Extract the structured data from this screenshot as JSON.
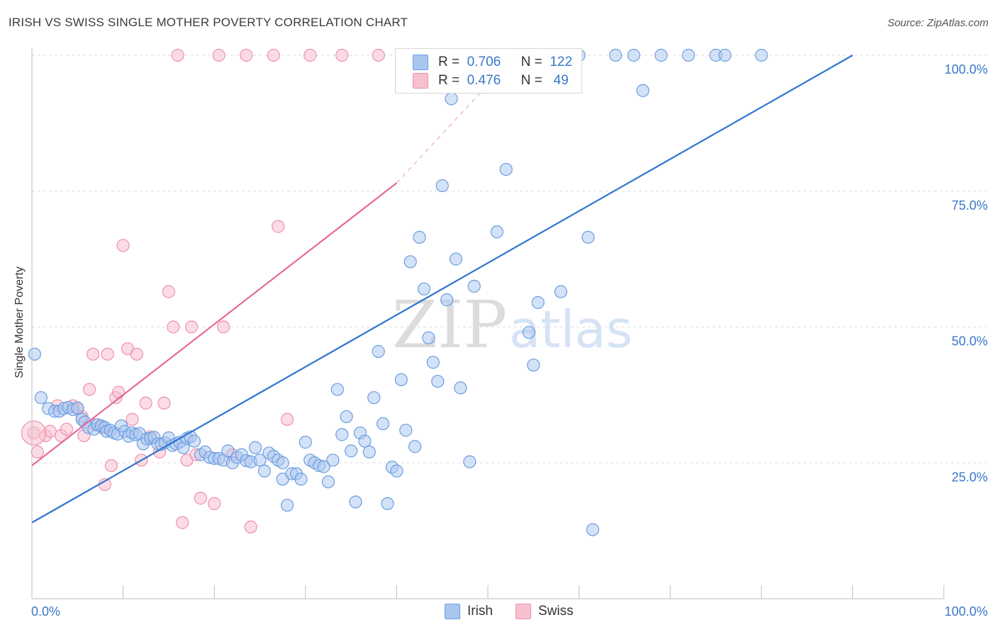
{
  "header": {
    "title": "IRISH VS SWISS SINGLE MOTHER POVERTY CORRELATION CHART",
    "source": "Source: ZipAtlas.com"
  },
  "watermark": {
    "zip": "ZIP",
    "atlas": "atlas"
  },
  "legend": {
    "irish": {
      "r_key": "R =",
      "r_value": "0.706",
      "n_key": "N =",
      "n_value": "122"
    },
    "swiss": {
      "r_key": "R =",
      "r_value": "0.476",
      "n_key": "N =",
      "n_value": "49"
    }
  },
  "bottom_legend": {
    "irish_label": "Irish",
    "swiss_label": "Swiss"
  },
  "colors": {
    "irish_fill": "#a9c6ef",
    "irish_stroke": "#6b9ee0",
    "irish_line": "#2f74d0",
    "swiss_fill": "#f7c0cf",
    "swiss_stroke": "#ee90ab",
    "swiss_line": "#e5699a",
    "tick_label": "#3b78c9"
  },
  "chart_data": {
    "type": "scatter",
    "title": "IRISH VS SWISS SINGLE MOTHER POVERTY CORRELATION CHART",
    "xlabel": "",
    "ylabel": "Single Mother Poverty",
    "xlim": [
      0,
      100
    ],
    "ylim": [
      0,
      100
    ],
    "x_tick_labels": [
      "0.0%",
      "100.0%"
    ],
    "y_ticks": [
      25,
      50,
      75,
      100
    ],
    "y_tick_labels": [
      "25.0%",
      "50.0%",
      "75.0%",
      "100.0%"
    ],
    "grid": "horizontal dashed",
    "legend_position": "top-center",
    "series": [
      {
        "name": "Irish",
        "r": 0.706,
        "n": 122,
        "trend": {
          "x": [
            0,
            90
          ],
          "y": [
            14,
            100
          ]
        },
        "points": [
          [
            0.3,
            45
          ],
          [
            1,
            37
          ],
          [
            1.8,
            35
          ],
          [
            2.5,
            34.5
          ],
          [
            3,
            34.5
          ],
          [
            3.5,
            35
          ],
          [
            4,
            35.2
          ],
          [
            4.5,
            34.8
          ],
          [
            5,
            35.1
          ],
          [
            5.5,
            33
          ],
          [
            5.8,
            32.5
          ],
          [
            6.2,
            31.5
          ],
          [
            6.8,
            31.2
          ],
          [
            7.2,
            32
          ],
          [
            7.6,
            31.8
          ],
          [
            8,
            31.5
          ],
          [
            8.2,
            30.8
          ],
          [
            8.6,
            31
          ],
          [
            9,
            30.5
          ],
          [
            9.4,
            30.3
          ],
          [
            9.8,
            31.8
          ],
          [
            10.2,
            30.8
          ],
          [
            10.6,
            29.9
          ],
          [
            11,
            30.5
          ],
          [
            11.4,
            30.2
          ],
          [
            11.8,
            30.4
          ],
          [
            12.2,
            28.5
          ],
          [
            12.6,
            29.4
          ],
          [
            13,
            29.5
          ],
          [
            13.4,
            29.7
          ],
          [
            13.8,
            28.5
          ],
          [
            14.2,
            28.4
          ],
          [
            14.6,
            28.7
          ],
          [
            15,
            29.6
          ],
          [
            15.4,
            28.2
          ],
          [
            15.8,
            28.5
          ],
          [
            16.2,
            28.8
          ],
          [
            16.6,
            27.8
          ],
          [
            17,
            29.5
          ],
          [
            17.4,
            29.8
          ],
          [
            17.8,
            29
          ],
          [
            18.5,
            26.5
          ],
          [
            19,
            27
          ],
          [
            19.5,
            26
          ],
          [
            20,
            25.8
          ],
          [
            20.5,
            25.8
          ],
          [
            21,
            25.5
          ],
          [
            21.5,
            27.2
          ],
          [
            22,
            25
          ],
          [
            22.5,
            26
          ],
          [
            23,
            26.5
          ],
          [
            23.5,
            25.4
          ],
          [
            24,
            25.2
          ],
          [
            24.5,
            27.8
          ],
          [
            25,
            25.5
          ],
          [
            25.5,
            23.5
          ],
          [
            26,
            26.8
          ],
          [
            26.5,
            26.2
          ],
          [
            27,
            25.5
          ],
          [
            27.5,
            25
          ],
          [
            27.5,
            22
          ],
          [
            28,
            17.2
          ],
          [
            28.5,
            23
          ],
          [
            29,
            23
          ],
          [
            29.5,
            22
          ],
          [
            30,
            28.8
          ],
          [
            30.5,
            25.5
          ],
          [
            31,
            25
          ],
          [
            31.5,
            24.5
          ],
          [
            32,
            24.3
          ],
          [
            32.5,
            21.5
          ],
          [
            33,
            25.5
          ],
          [
            33.5,
            38.5
          ],
          [
            34,
            30.2
          ],
          [
            34.5,
            33.5
          ],
          [
            35,
            27.2
          ],
          [
            35.5,
            17.8
          ],
          [
            36,
            30.5
          ],
          [
            36.5,
            29
          ],
          [
            37,
            27
          ],
          [
            37.5,
            37
          ],
          [
            38,
            45.5
          ],
          [
            38.5,
            32.2
          ],
          [
            39,
            17.5
          ],
          [
            39.5,
            24.2
          ],
          [
            40,
            23.5
          ],
          [
            40.5,
            40.3
          ],
          [
            41,
            31
          ],
          [
            41.5,
            62
          ],
          [
            42,
            28
          ],
          [
            42.5,
            66.5
          ],
          [
            43,
            57
          ],
          [
            43.5,
            48
          ],
          [
            44,
            43.5
          ],
          [
            44.5,
            40
          ],
          [
            45,
            76
          ],
          [
            45.5,
            55
          ],
          [
            46,
            92
          ],
          [
            46.5,
            62.5
          ],
          [
            47,
            38.8
          ],
          [
            48,
            25.2
          ],
          [
            48.5,
            57.5
          ],
          [
            50,
            100
          ],
          [
            51,
            67.5
          ],
          [
            52,
            79
          ],
          [
            54,
            100
          ],
          [
            54.5,
            49
          ],
          [
            55,
            43
          ],
          [
            55.5,
            54.5
          ],
          [
            57,
            100
          ],
          [
            58,
            56.5
          ],
          [
            59,
            100
          ],
          [
            60,
            100
          ],
          [
            61,
            66.5
          ],
          [
            61.5,
            12.7
          ],
          [
            64,
            100
          ],
          [
            66,
            100
          ],
          [
            67,
            93.5
          ],
          [
            69,
            100
          ],
          [
            72,
            100
          ],
          [
            75,
            100
          ],
          [
            76,
            100
          ],
          [
            80,
            100
          ]
        ]
      },
      {
        "name": "Swiss",
        "r": 0.476,
        "n": 49,
        "trend": {
          "x": [
            0,
            40
          ],
          "y": [
            24.5,
            76.5
          ],
          "dashed_x": [
            40,
            53
          ],
          "dashed_y": [
            76.5,
            100
          ]
        },
        "points": [
          [
            0.2,
            30.5
          ],
          [
            0.6,
            27
          ],
          [
            1.5,
            30
          ],
          [
            2,
            30.8
          ],
          [
            2.8,
            35.5
          ],
          [
            3.2,
            30
          ],
          [
            3.8,
            31.2
          ],
          [
            4.5,
            35.5
          ],
          [
            5,
            35
          ],
          [
            5.5,
            33.5
          ],
          [
            5.7,
            30
          ],
          [
            6.3,
            38.5
          ],
          [
            6.7,
            45
          ],
          [
            7,
            32
          ],
          [
            7.7,
            31.5
          ],
          [
            8,
            21
          ],
          [
            8.3,
            45
          ],
          [
            8.7,
            24.5
          ],
          [
            9.2,
            37
          ],
          [
            9.5,
            38
          ],
          [
            10,
            65
          ],
          [
            10.5,
            46
          ],
          [
            11,
            33
          ],
          [
            11.5,
            45
          ],
          [
            12,
            25.5
          ],
          [
            12.5,
            36
          ],
          [
            13,
            29.8
          ],
          [
            14,
            27
          ],
          [
            14.5,
            36
          ],
          [
            15,
            56.5
          ],
          [
            15.5,
            50
          ],
          [
            16,
            100
          ],
          [
            16.5,
            14
          ],
          [
            17,
            25.5
          ],
          [
            17.5,
            50
          ],
          [
            18,
            26.5
          ],
          [
            18.5,
            18.5
          ],
          [
            20,
            17.5
          ],
          [
            20.5,
            100
          ],
          [
            21,
            50
          ],
          [
            22,
            26.5
          ],
          [
            23.5,
            100
          ],
          [
            24,
            13.2
          ],
          [
            26.5,
            100
          ],
          [
            27,
            68.5
          ],
          [
            28,
            33
          ],
          [
            30.5,
            100
          ],
          [
            34,
            100
          ],
          [
            38,
            100
          ]
        ]
      }
    ]
  }
}
